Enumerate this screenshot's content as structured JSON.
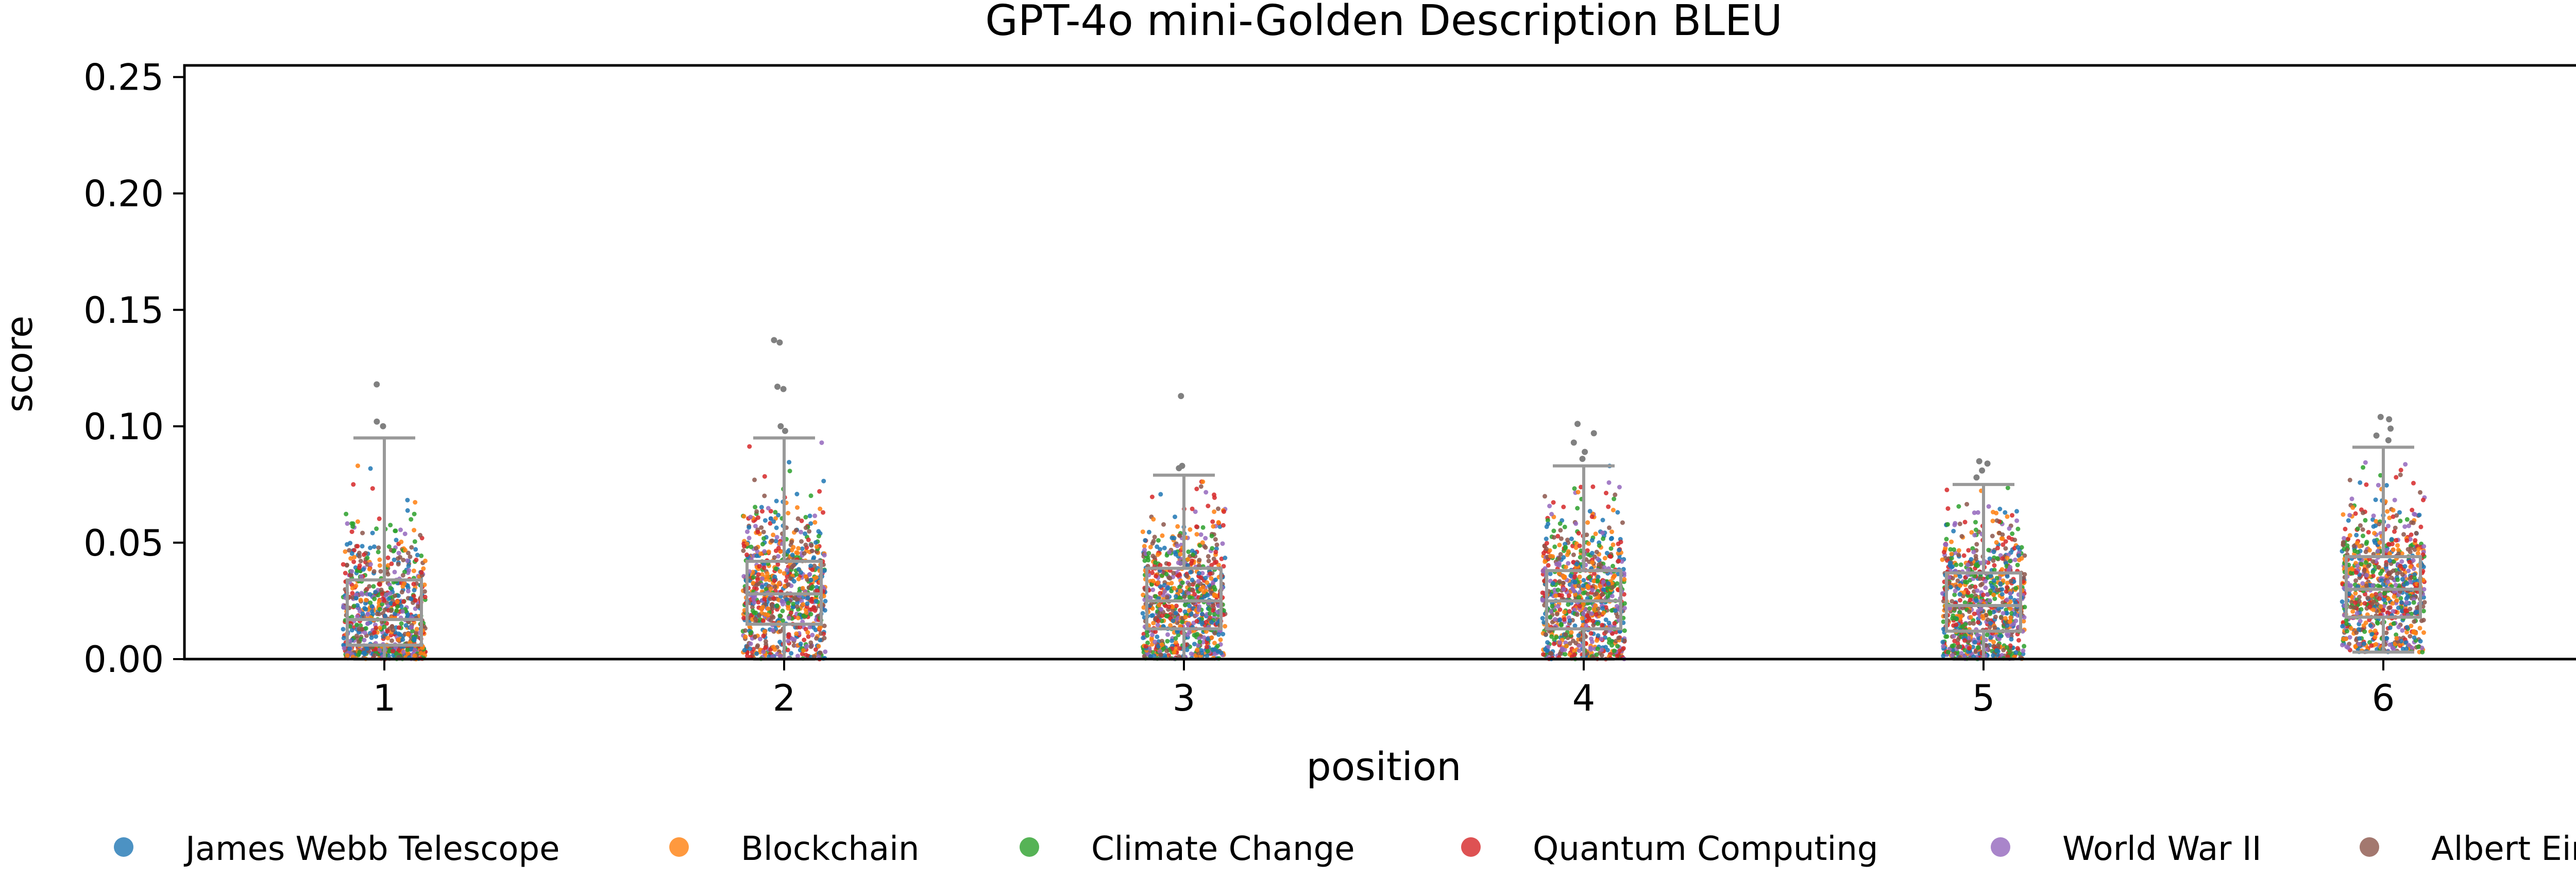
{
  "chart_data": {
    "type": "box+strip",
    "title": "GPT-4o mini-Golden Description BLEU",
    "xlabel": "position",
    "ylabel": "score",
    "ylim": [
      0,
      0.255
    ],
    "yticks": [
      "0.00",
      "0.05",
      "0.10",
      "0.15",
      "0.20",
      "0.25"
    ],
    "categories": [
      "1",
      "2",
      "3",
      "4",
      "5",
      "6"
    ],
    "grid": false,
    "legend_position": "bottom",
    "box_color": "#999999",
    "boxes": [
      {
        "position": "1",
        "q1": 0.006,
        "median": 0.017,
        "q3": 0.034,
        "whisker_low": 0.0,
        "whisker_high": 0.095,
        "outliers": [
          0.1,
          0.102,
          0.118
        ]
      },
      {
        "position": "2",
        "q1": 0.015,
        "median": 0.028,
        "q3": 0.042,
        "whisker_low": 0.0,
        "whisker_high": 0.095,
        "outliers": [
          0.098,
          0.1,
          0.116,
          0.117,
          0.136,
          0.137
        ]
      },
      {
        "position": "3",
        "q1": 0.013,
        "median": 0.025,
        "q3": 0.039,
        "whisker_low": 0.0,
        "whisker_high": 0.079,
        "outliers": [
          0.082,
          0.083,
          0.113
        ]
      },
      {
        "position": "4",
        "q1": 0.013,
        "median": 0.025,
        "q3": 0.038,
        "whisker_low": 0.0,
        "whisker_high": 0.083,
        "outliers": [
          0.086,
          0.089,
          0.093,
          0.097,
          0.101
        ]
      },
      {
        "position": "5",
        "q1": 0.012,
        "median": 0.023,
        "q3": 0.037,
        "whisker_low": 0.0,
        "whisker_high": 0.075,
        "outliers": [
          0.078,
          0.081,
          0.084,
          0.085
        ]
      },
      {
        "position": "6",
        "q1": 0.018,
        "median": 0.03,
        "q3": 0.044,
        "whisker_low": 0.003,
        "whisker_high": 0.091,
        "outliers": [
          0.094,
          0.096,
          0.099,
          0.103,
          0.104
        ]
      }
    ],
    "series": [
      {
        "name": "James Webb Telescope",
        "color": "#1f77b4"
      },
      {
        "name": "Blockchain",
        "color": "#ff7f0e"
      },
      {
        "name": "Climate Change",
        "color": "#2ca02c"
      },
      {
        "name": "Quantum Computing",
        "color": "#d62728"
      },
      {
        "name": "World War II",
        "color": "#9467bd"
      },
      {
        "name": "Albert Einstein",
        "color": "#8c564b"
      }
    ]
  }
}
